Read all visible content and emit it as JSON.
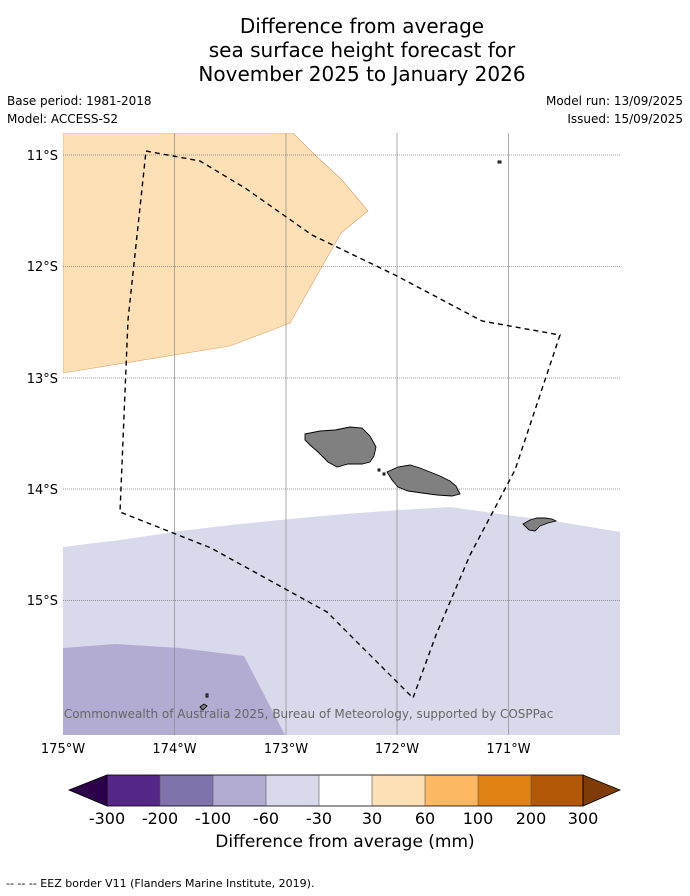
{
  "title": {
    "line1": "Difference from average",
    "line2": "sea surface height forecast for",
    "line3": "November 2025 to January 2026"
  },
  "meta": {
    "base_period": "Base period: 1981-2018",
    "model": "Model: ACCESS-S2",
    "model_run": "Model run: 13/09/2025",
    "issued": "Issued: 15/09/2025"
  },
  "map": {
    "lon_labels": [
      "175°W",
      "174°W",
      "173°W",
      "172°W",
      "171°W"
    ],
    "lat_labels": [
      "11°S",
      "12°S",
      "13°S",
      "14°S",
      "15°S"
    ],
    "attribution": "© Commonwealth of Australia 2025, Bureau of Meteorology, supported by COSPPac",
    "colors": {
      "land": "#808080",
      "eez_border": "#000000",
      "class_30_60": "#fee0b6",
      "class_m60_m30": "#d8daeb",
      "class_m100_m60": "#b2abd2"
    }
  },
  "colorbar": {
    "title": "Difference from average (mm)",
    "ticks": [
      "-300",
      "-200",
      "-100",
      "-60",
      "-30",
      "30",
      "60",
      "100",
      "200",
      "300"
    ],
    "colors": [
      "#2d004b",
      "#542788",
      "#8073ac",
      "#b2abd2",
      "#d8daeb",
      "#ffffff",
      "#fee0b6",
      "#fdb863",
      "#e08214",
      "#b35806",
      "#7f3b08"
    ]
  },
  "footnote": "--  --  -- EEZ border V11 (Flanders Marine Institute, 2019)."
}
